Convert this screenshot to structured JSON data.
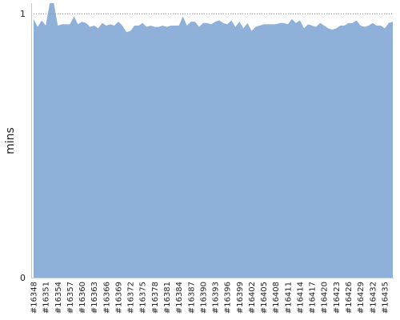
{
  "chart_data": {
    "type": "area",
    "ylabel": "mins",
    "ylim": [
      0,
      1.04
    ],
    "y_ticks": [
      0,
      1
    ],
    "ref_line": 1,
    "fill_color": "#8fb0d9",
    "ref_line_color": "#888888",
    "axis_color": "#c8c8c8",
    "x_tick_labels": [
      "#16348",
      "#16351",
      "#16354",
      "#16357",
      "#16360",
      "#16363",
      "#16366",
      "#16369",
      "#16372",
      "#16375",
      "#16378",
      "#16381",
      "#16384",
      "#16387",
      "#16390",
      "#16393",
      "#16396",
      "#16399",
      "#16402",
      "#16405",
      "#16408",
      "#16411",
      "#16414",
      "#16417",
      "#16420",
      "#16423",
      "#16426",
      "#16429",
      "#16432",
      "#16435"
    ],
    "x": [
      16348,
      16349,
      16350,
      16351,
      16352,
      16353,
      16354,
      16355,
      16356,
      16357,
      16358,
      16359,
      16360,
      16361,
      16362,
      16363,
      16364,
      16365,
      16366,
      16367,
      16368,
      16369,
      16370,
      16371,
      16372,
      16373,
      16374,
      16375,
      16376,
      16377,
      16378,
      16379,
      16380,
      16381,
      16382,
      16383,
      16384,
      16385,
      16386,
      16387,
      16388,
      16389,
      16390,
      16391,
      16392,
      16393,
      16394,
      16395,
      16396,
      16397,
      16398,
      16399,
      16400,
      16401,
      16402,
      16403,
      16404,
      16405,
      16406,
      16407,
      16408,
      16409,
      16410,
      16411,
      16412,
      16413,
      16414,
      16415,
      16416,
      16417,
      16418,
      16419,
      16420,
      16421,
      16422,
      16423,
      16424,
      16425,
      16426,
      16427,
      16428,
      16429,
      16430,
      16431,
      16432,
      16433,
      16434,
      16435,
      16436,
      16437
    ],
    "values": [
      0.98,
      0.95,
      0.975,
      0.955,
      1.04,
      1.04,
      0.955,
      0.96,
      0.96,
      0.96,
      0.99,
      0.96,
      0.97,
      0.965,
      0.95,
      0.955,
      0.945,
      0.965,
      0.955,
      0.96,
      0.955,
      0.97,
      0.955,
      0.93,
      0.935,
      0.955,
      0.955,
      0.965,
      0.95,
      0.955,
      0.95,
      0.95,
      0.955,
      0.95,
      0.955,
      0.955,
      0.955,
      0.99,
      0.955,
      0.97,
      0.97,
      0.95,
      0.965,
      0.965,
      0.96,
      0.97,
      0.975,
      0.965,
      0.96,
      0.975,
      0.95,
      0.97,
      0.945,
      0.965,
      0.935,
      0.95,
      0.955,
      0.96,
      0.96,
      0.96,
      0.96,
      0.965,
      0.965,
      0.96,
      0.98,
      0.965,
      0.975,
      0.945,
      0.96,
      0.955,
      0.95,
      0.965,
      0.955,
      0.945,
      0.94,
      0.945,
      0.955,
      0.955,
      0.965,
      0.965,
      0.975,
      0.955,
      0.95,
      0.955,
      0.965,
      0.955,
      0.955,
      0.945,
      0.965,
      0.97
    ]
  }
}
